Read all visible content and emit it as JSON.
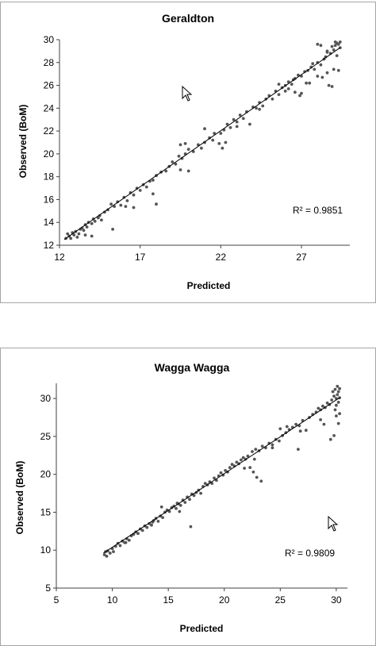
{
  "chart_data": [
    {
      "type": "scatter",
      "title": "Geraldton",
      "xlabel": "Predicted",
      "ylabel": "Observed (BoM)",
      "xlim": [
        12,
        30
      ],
      "ylim": [
        12,
        30
      ],
      "xticks": [
        12,
        17,
        22,
        27
      ],
      "yticks": [
        12,
        14,
        16,
        18,
        20,
        22,
        24,
        26,
        28,
        30
      ],
      "annotation": "R² = 0.9851",
      "trendline": {
        "x": [
          12.3,
          29.4
        ],
        "y": [
          12.5,
          29.3
        ]
      },
      "grid": false,
      "marker_color": "#555555",
      "series": [
        {
          "points": [
            [
              12.4,
              12.6
            ],
            [
              12.5,
              13.0
            ],
            [
              12.6,
              12.8
            ],
            [
              12.7,
              12.6
            ],
            [
              12.8,
              13.1
            ],
            [
              12.9,
              12.9
            ],
            [
              13.0,
              13.2
            ],
            [
              13.1,
              12.7
            ],
            [
              13.2,
              13.0
            ],
            [
              13.3,
              13.4
            ],
            [
              13.4,
              13.5
            ],
            [
              13.5,
              13.3
            ],
            [
              13.6,
              13.8
            ],
            [
              13.7,
              13.6
            ],
            [
              13.8,
              14.0
            ],
            [
              14.0,
              13.9
            ],
            [
              14.1,
              14.3
            ],
            [
              14.2,
              14.1
            ],
            [
              14.4,
              14.4
            ],
            [
              14.5,
              14.6
            ],
            [
              14.6,
              14.2
            ],
            [
              14.8,
              14.9
            ],
            [
              13.6,
              12.9
            ],
            [
              14.0,
              12.8
            ],
            [
              15.3,
              13.4
            ],
            [
              15.0,
              15.1
            ],
            [
              15.2,
              15.6
            ],
            [
              15.4,
              15.4
            ],
            [
              15.6,
              15.8
            ],
            [
              15.8,
              15.5
            ],
            [
              16.0,
              16.2
            ],
            [
              16.2,
              15.9
            ],
            [
              16.4,
              16.6
            ],
            [
              16.6,
              16.4
            ],
            [
              16.1,
              15.4
            ],
            [
              16.6,
              15.3
            ],
            [
              16.8,
              17.0
            ],
            [
              17.0,
              16.8
            ],
            [
              17.2,
              17.3
            ],
            [
              17.4,
              17.1
            ],
            [
              17.6,
              17.6
            ],
            [
              17.8,
              17.7
            ],
            [
              18.0,
              18.1
            ],
            [
              18.3,
              18.4
            ],
            [
              18.6,
              18.5
            ],
            [
              17.8,
              16.5
            ],
            [
              18.0,
              15.6
            ],
            [
              18.8,
              18.9
            ],
            [
              19.0,
              19.3
            ],
            [
              19.2,
              19.1
            ],
            [
              19.4,
              19.8
            ],
            [
              19.6,
              19.6
            ],
            [
              19.8,
              20.0
            ],
            [
              20.0,
              20.4
            ],
            [
              19.5,
              20.8
            ],
            [
              19.8,
              20.9
            ],
            [
              19.5,
              18.6
            ],
            [
              20.0,
              18.5
            ],
            [
              20.3,
              20.2
            ],
            [
              20.6,
              20.8
            ],
            [
              20.8,
              20.5
            ],
            [
              21.0,
              21.0
            ],
            [
              21.3,
              21.4
            ],
            [
              21.5,
              21.2
            ],
            [
              21.6,
              21.8
            ],
            [
              21.0,
              22.2
            ],
            [
              22.0,
              21.8
            ],
            [
              22.2,
              22.1
            ],
            [
              22.4,
              22.6
            ],
            [
              22.6,
              22.3
            ],
            [
              21.9,
              20.9
            ],
            [
              22.1,
              20.5
            ],
            [
              22.3,
              21.0
            ],
            [
              22.8,
              23.0
            ],
            [
              23.0,
              22.8
            ],
            [
              23.2,
              23.4
            ],
            [
              23.4,
              23.1
            ],
            [
              23.6,
              23.7
            ],
            [
              23.0,
              22.4
            ],
            [
              23.8,
              22.6
            ],
            [
              24.0,
              24.1
            ],
            [
              24.2,
              24.0
            ],
            [
              24.4,
              24.5
            ],
            [
              24.6,
              24.2
            ],
            [
              24.8,
              24.8
            ],
            [
              24.4,
              23.9
            ],
            [
              25.0,
              25.1
            ],
            [
              25.2,
              24.8
            ],
            [
              25.4,
              25.5
            ],
            [
              25.6,
              25.2
            ],
            [
              25.8,
              25.8
            ],
            [
              26.0,
              26.0
            ],
            [
              25.6,
              26.1
            ],
            [
              26.2,
              26.3
            ],
            [
              26.4,
              26.1
            ],
            [
              26.6,
              26.6
            ],
            [
              26.0,
              25.5
            ],
            [
              26.2,
              25.7
            ],
            [
              26.6,
              25.4
            ],
            [
              26.8,
              26.9
            ],
            [
              27.0,
              26.8
            ],
            [
              27.2,
              27.2
            ],
            [
              27.4,
              27.3
            ],
            [
              26.9,
              25.1
            ],
            [
              27.0,
              25.3
            ],
            [
              27.6,
              27.6
            ],
            [
              27.8,
              27.4
            ],
            [
              28.0,
              28.0
            ],
            [
              28.2,
              27.8
            ],
            [
              28.4,
              28.3
            ],
            [
              27.5,
              26.2
            ],
            [
              28.0,
              26.8
            ],
            [
              28.3,
              26.7
            ],
            [
              28.5,
              28.5
            ],
            [
              28.6,
              28.9
            ],
            [
              28.6,
              29.0
            ],
            [
              28.8,
              28.8
            ],
            [
              29.0,
              29.1
            ],
            [
              29.1,
              29.5
            ],
            [
              29.2,
              29.7
            ],
            [
              29.3,
              29.6
            ],
            [
              29.4,
              29.3
            ],
            [
              29.1,
              29.8
            ],
            [
              28.9,
              29.4
            ],
            [
              28.2,
              29.5
            ],
            [
              28.0,
              29.6
            ],
            [
              29.2,
              28.6
            ],
            [
              29.0,
              27.4
            ],
            [
              28.7,
              26.0
            ],
            [
              28.9,
              25.9
            ],
            [
              29.3,
              27.3
            ],
            [
              29.4,
              29.8
            ],
            [
              28.6,
              27.1
            ],
            [
              27.7,
              27.9
            ],
            [
              26.5,
              26.5
            ],
            [
              27.3,
              26.2
            ]
          ]
        }
      ]
    },
    {
      "type": "scatter",
      "title": "Wagga Wagga",
      "xlabel": "Predicted",
      "ylabel": "Observed (BoM)",
      "xlim": [
        5,
        31
      ],
      "ylim": [
        5,
        32
      ],
      "xticks": [
        5,
        10,
        15,
        20,
        25,
        30
      ],
      "yticks": [
        5,
        10,
        15,
        20,
        25,
        30
      ],
      "annotation": "R² = 0.9809",
      "trendline": {
        "x": [
          9.2,
          30.3
        ],
        "y": [
          9.6,
          30.1
        ]
      },
      "grid": false,
      "marker_color": "#555555",
      "series": [
        {
          "points": [
            [
              9.3,
              9.4
            ],
            [
              9.4,
              9.8
            ],
            [
              9.5,
              9.2
            ],
            [
              9.6,
              9.9
            ],
            [
              9.8,
              9.6
            ],
            [
              10.0,
              10.2
            ],
            [
              10.1,
              9.8
            ],
            [
              10.3,
              10.5
            ],
            [
              10.5,
              10.9
            ],
            [
              10.7,
              10.6
            ],
            [
              10.9,
              11.2
            ],
            [
              11.1,
              11.0
            ],
            [
              11.3,
              11.5
            ],
            [
              11.5,
              11.3
            ],
            [
              11.7,
              11.9
            ],
            [
              11.9,
              12.1
            ],
            [
              12.1,
              12.4
            ],
            [
              12.3,
              12.2
            ],
            [
              12.5,
              12.8
            ],
            [
              12.7,
              12.6
            ],
            [
              12.9,
              13.2
            ],
            [
              13.1,
              13.0
            ],
            [
              13.3,
              13.5
            ],
            [
              13.5,
              13.3
            ],
            [
              13.7,
              13.9
            ],
            [
              13.9,
              14.2
            ],
            [
              14.1,
              13.8
            ],
            [
              14.3,
              14.5
            ],
            [
              14.5,
              14.3
            ],
            [
              14.7,
              15.0
            ],
            [
              14.9,
              15.3
            ],
            [
              15.1,
              15.1
            ],
            [
              15.3,
              15.6
            ],
            [
              15.5,
              15.8
            ],
            [
              15.7,
              15.5
            ],
            [
              15.9,
              16.1
            ],
            [
              16.1,
              15.9
            ],
            [
              16.3,
              16.6
            ],
            [
              16.5,
              16.3
            ],
            [
              16.7,
              17.0
            ],
            [
              16.9,
              16.7
            ],
            [
              17.1,
              17.4
            ],
            [
              17.0,
              13.1
            ],
            [
              16.0,
              15.1
            ],
            [
              17.3,
              17.2
            ],
            [
              17.5,
              17.6
            ],
            [
              17.7,
              17.9
            ],
            [
              17.9,
              17.5
            ],
            [
              18.1,
              18.4
            ],
            [
              18.3,
              18.8
            ],
            [
              18.5,
              18.6
            ],
            [
              18.7,
              19.0
            ],
            [
              18.9,
              18.8
            ],
            [
              19.1,
              19.5
            ],
            [
              19.3,
              19.2
            ],
            [
              19.5,
              19.8
            ],
            [
              19.7,
              20.2
            ],
            [
              19.9,
              19.9
            ],
            [
              20.1,
              20.5
            ],
            [
              20.3,
              20.3
            ],
            [
              20.5,
              20.9
            ],
            [
              20.7,
              21.3
            ],
            [
              20.9,
              21.1
            ],
            [
              21.1,
              21.6
            ],
            [
              21.3,
              21.4
            ],
            [
              21.5,
              21.9
            ],
            [
              21.7,
              22.2
            ],
            [
              21.9,
              22.0
            ],
            [
              22.1,
              22.4
            ],
            [
              21.8,
              20.8
            ],
            [
              22.3,
              20.9
            ],
            [
              22.6,
              20.3
            ],
            [
              22.9,
              19.6
            ],
            [
              23.3,
              19.1
            ],
            [
              22.5,
              23.0
            ],
            [
              22.8,
              23.3
            ],
            [
              23.1,
              23.1
            ],
            [
              23.4,
              23.7
            ],
            [
              23.7,
              23.5
            ],
            [
              24.0,
              24.1
            ],
            [
              24.3,
              23.9
            ],
            [
              24.6,
              24.6
            ],
            [
              24.9,
              24.4
            ],
            [
              25.2,
              25.1
            ],
            [
              25.5,
              25.5
            ],
            [
              25.0,
              26.0
            ],
            [
              25.6,
              26.3
            ],
            [
              25.8,
              25.9
            ],
            [
              26.1,
              26.2
            ],
            [
              26.4,
              26.6
            ],
            [
              26.7,
              26.4
            ],
            [
              27.0,
              27.1
            ],
            [
              26.8,
              25.7
            ],
            [
              27.3,
              25.8
            ],
            [
              26.6,
              23.3
            ],
            [
              27.6,
              27.5
            ],
            [
              27.9,
              27.9
            ],
            [
              28.2,
              28.2
            ],
            [
              28.4,
              28.7
            ],
            [
              28.6,
              28.5
            ],
            [
              28.8,
              29.0
            ],
            [
              29.0,
              28.8
            ],
            [
              28.6,
              27.2
            ],
            [
              28.9,
              26.6
            ],
            [
              29.2,
              29.4
            ],
            [
              29.4,
              29.2
            ],
            [
              29.6,
              29.8
            ],
            [
              29.8,
              30.3
            ],
            [
              30.0,
              30.0
            ],
            [
              30.1,
              30.5
            ],
            [
              30.2,
              30.9
            ],
            [
              30.3,
              31.3
            ],
            [
              30.1,
              31.6
            ],
            [
              29.9,
              31.2
            ],
            [
              29.7,
              30.9
            ],
            [
              30.3,
              30.1
            ],
            [
              30.2,
              29.5
            ],
            [
              30.0,
              29.1
            ],
            [
              29.9,
              28.5
            ],
            [
              30.3,
              28.0
            ],
            [
              29.5,
              24.6
            ],
            [
              29.8,
              25.1
            ],
            [
              30.2,
              26.7
            ],
            [
              30.0,
              27.7
            ],
            [
              24.3,
              23.5
            ],
            [
              22.7,
              22.0
            ],
            [
              15.8,
              16.2
            ],
            [
              14.4,
              15.7
            ],
            [
              13.6,
              13.7
            ],
            [
              11.2,
              11.0
            ]
          ]
        }
      ]
    }
  ]
}
